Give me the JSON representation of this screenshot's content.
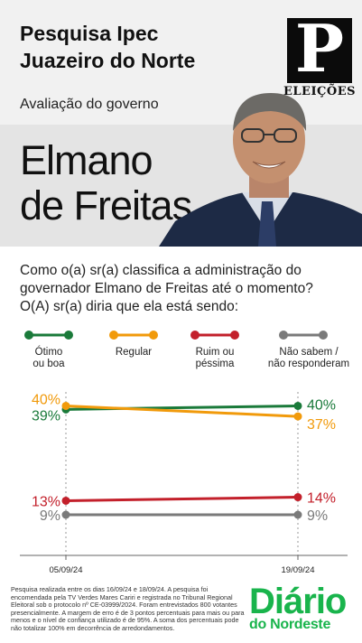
{
  "header": {
    "title_line1": "Pesquisa Ipec",
    "title_line2": "Juazeiro do Norte",
    "subtitle": "Avaliação do governo",
    "logo_letter": "P",
    "logo_word": "ELEIÇÕES"
  },
  "candidate": {
    "name_line1": "Elmano",
    "name_line2": "de Freitas"
  },
  "question": "Como o(a) sr(a) classifica a administração do governador Elmano de Freitas até o momento? O(A) sr(a) diria que ela está sendo:",
  "legend": [
    {
      "line1": "Ótimo",
      "line2": "ou boa",
      "color": "#1a7a3a"
    },
    {
      "line1": "Regular",
      "line2": "",
      "color": "#f19a0b"
    },
    {
      "line1": "Ruim ou",
      "line2": "péssima",
      "color": "#c3202b"
    },
    {
      "line1": "Não sabem /",
      "line2": "não responderam",
      "color": "#7a7a7a"
    }
  ],
  "chart_data": {
    "type": "line",
    "x": [
      "05/09/24",
      "19/09/24"
    ],
    "ylim": [
      0,
      45
    ],
    "series": [
      {
        "name": "Ótimo ou boa",
        "color": "#1a7a3a",
        "values": [
          39,
          40
        ],
        "labels": [
          "39%",
          "40%"
        ]
      },
      {
        "name": "Regular",
        "color": "#f19a0b",
        "values": [
          40,
          37
        ],
        "labels": [
          "40%",
          "37%"
        ]
      },
      {
        "name": "Ruim ou péssima",
        "color": "#c3202b",
        "values": [
          13,
          14
        ],
        "labels": [
          "13%",
          "14%"
        ]
      },
      {
        "name": "Não sabem / não responderam",
        "color": "#7a7a7a",
        "values": [
          9,
          9
        ],
        "labels": [
          "9%",
          "9%"
        ]
      }
    ]
  },
  "footnote": "Pesquisa realizada entre os dias 16/09/24 e 18/09/24. A pesquisa foi encomendada pela TV Verdes Mares Cariri e registrada no Tribunal Regional Eleitoral sob o protocolo nº CE-03999/2024. Foram entrevistados 800 votantes presencialmente. A margem de erro é de 3 pontos percentuais para mais ou para menos e o nível de confiança utilizado é de 95%. A soma dos percentuais pode não totalizar 100% em decorrência de arredondamentos.",
  "brand": {
    "line1": "Diário",
    "line2": "do Nordeste"
  }
}
